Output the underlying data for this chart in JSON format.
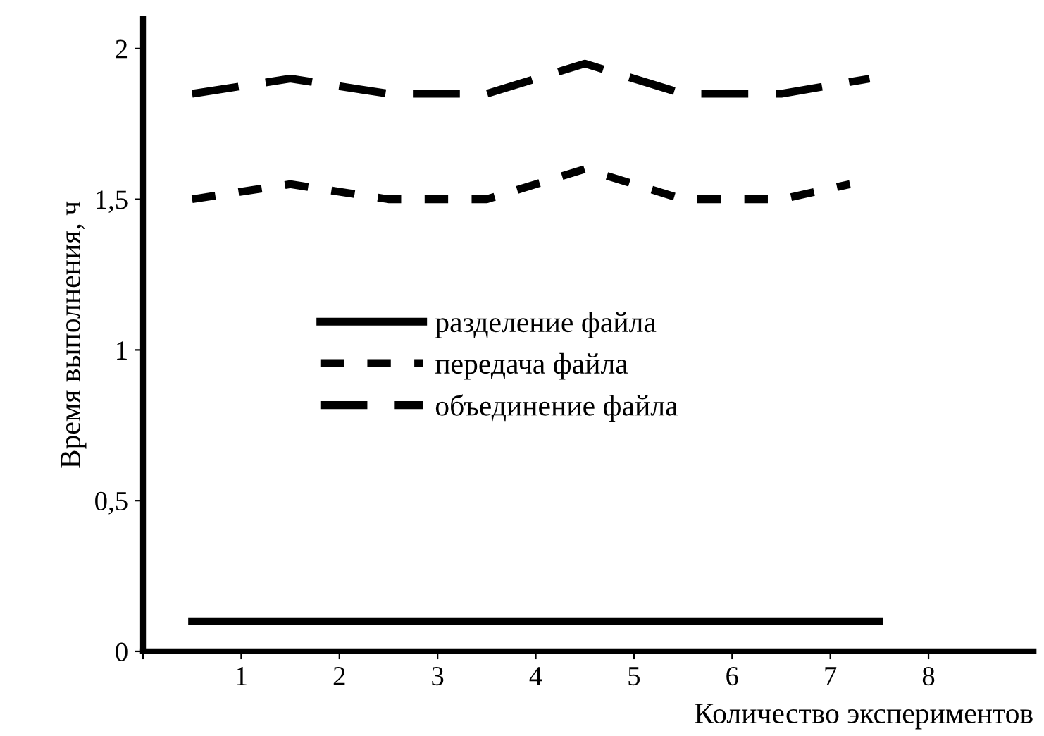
{
  "chart_data": {
    "type": "line",
    "xlabel": "Количество экспериментов",
    "ylabel": "Время выполнения, ч",
    "xlim": [
      0,
      9.07
    ],
    "ylim": [
      0,
      2.1
    ],
    "xticks": [
      {
        "value": 0,
        "label": null
      },
      1,
      2,
      3,
      4,
      5,
      6,
      7,
      8
    ],
    "yticks": [
      0,
      {
        "value": 0.5,
        "label": "0,5"
      },
      1,
      {
        "value": 1.5,
        "label": "1,5"
      },
      2
    ],
    "grid": false,
    "legend": "center",
    "marker": "none",
    "series": [
      {
        "name": "разделение файла",
        "color": "#000000",
        "line_style": "solid",
        "x": [
          0.5,
          7.5
        ],
        "values": [
          0.1,
          0.1
        ]
      },
      {
        "name": "передача файла",
        "color": "#000000",
        "line_style": "dotted",
        "x": [
          0.5,
          1.5,
          2.5,
          3.5,
          4.5,
          5.5,
          6.5,
          7.2
        ],
        "values": [
          1.5,
          1.55,
          1.5,
          1.5,
          1.6,
          1.5,
          1.5,
          1.55
        ]
      },
      {
        "name": "объединение файла",
        "color": "#000000",
        "line_style": "dashed",
        "x": [
          0.5,
          1.5,
          2.5,
          3.5,
          4.5,
          5.5,
          6.5,
          7.4
        ],
        "values": [
          1.85,
          1.9,
          1.85,
          1.85,
          1.95,
          1.85,
          1.85,
          1.9
        ]
      }
    ]
  }
}
